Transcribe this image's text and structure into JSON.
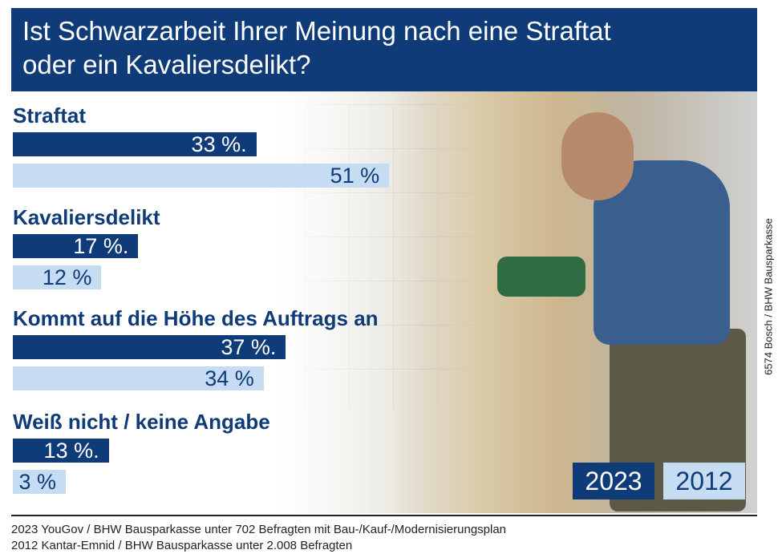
{
  "title": "Ist Schwarzarbeit Ihrer Meinung nach eine Straftat oder ein Kavaliersdelikt?",
  "title_line1": "Ist Schwarzarbeit Ihrer Meinung nach eine Straftat",
  "title_line2": "oder ein Kavaliersdelikt?",
  "colors": {
    "header": "#0f3b78",
    "y2023": "#0f3b78",
    "y2012": "#c5dcf2"
  },
  "chart_data": {
    "type": "bar",
    "orientation": "horizontal",
    "categories": [
      "Straftat",
      "Kavaliersdelikt",
      "Kommt auf die Höhe des Auftrags an",
      "Weiß nicht / keine Angabe"
    ],
    "series": [
      {
        "name": "2023",
        "values": [
          33,
          17,
          37,
          13
        ]
      },
      {
        "name": "2012",
        "values": [
          51,
          12,
          34,
          3
        ]
      }
    ],
    "value_labels": {
      "2023": [
        "33 %.",
        "17 %.",
        "37 %.",
        "13 %."
      ],
      "2012": [
        "51 %",
        "12 %",
        "34 %",
        "3 %"
      ]
    },
    "unit": "%",
    "legend_position": "bottom-right"
  },
  "legend": {
    "y2023": "2023",
    "y2012": "2012"
  },
  "credit": "6574 Bosch / BHW Bausparkasse",
  "sources": [
    "2023 YouGov / BHW Bausparkasse unter 702 Befragten mit Bau-/Kauf-/Modernisierungsplan",
    "2012 Kantar-Emnid / BHW Bausparkasse unter 2.008 Befragten"
  ]
}
